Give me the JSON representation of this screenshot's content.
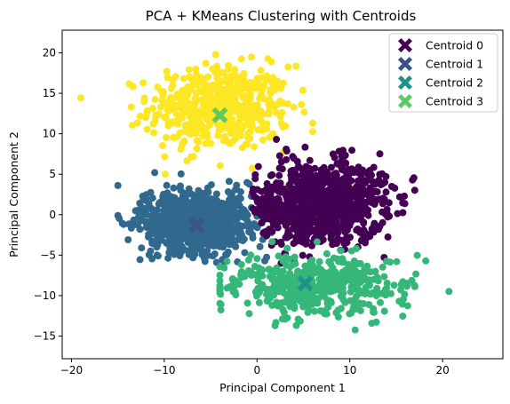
{
  "chart_data": {
    "type": "scatter",
    "title": "PCA + KMeans Clustering with Centroids",
    "xlabel": "Principal Component 1",
    "ylabel": "Principal Component 2",
    "xlim": [
      -21,
      26.5
    ],
    "ylim": [
      -17.8,
      22.8
    ],
    "xticks": [
      -20,
      -10,
      0,
      10,
      20
    ],
    "yticks": [
      -15,
      -10,
      -5,
      0,
      5,
      10,
      15,
      20
    ],
    "grid": false,
    "legend_position": "top-right",
    "clusters": [
      {
        "id": 0,
        "color": "#440154",
        "approx_x_range": [
          -1,
          17
        ],
        "approx_y_range": [
          -6,
          10
        ],
        "center": [
          7,
          1.5
        ]
      },
      {
        "id": 1,
        "color": "#31688e",
        "approx_x_range": [
          -15,
          3
        ],
        "approx_y_range": [
          -7,
          7
        ],
        "center": [
          -6.5,
          -1.3
        ]
      },
      {
        "id": 2,
        "color": "#35b779",
        "approx_x_range": [
          -4,
          25
        ],
        "approx_y_range": [
          -16,
          -3
        ],
        "center": [
          5.2,
          -8.5
        ]
      },
      {
        "id": 3,
        "color": "#fde725",
        "approx_x_range": [
          -19,
          6
        ],
        "approx_y_range": [
          5,
          21
        ],
        "center": [
          -4,
          12.3
        ]
      }
    ],
    "series": [
      {
        "name": "Centroid 0",
        "marker": "X",
        "color": "#440154",
        "x": 7.0,
        "y": 1.5
      },
      {
        "name": "Centroid 1",
        "marker": "X",
        "color": "#3b528b",
        "x": -6.5,
        "y": -1.3
      },
      {
        "name": "Centroid 2",
        "marker": "X",
        "color": "#21918c",
        "x": 5.2,
        "y": -8.5
      },
      {
        "name": "Centroid 3",
        "marker": "X",
        "color": "#5ec962",
        "x": -4.0,
        "y": 12.3
      }
    ]
  }
}
